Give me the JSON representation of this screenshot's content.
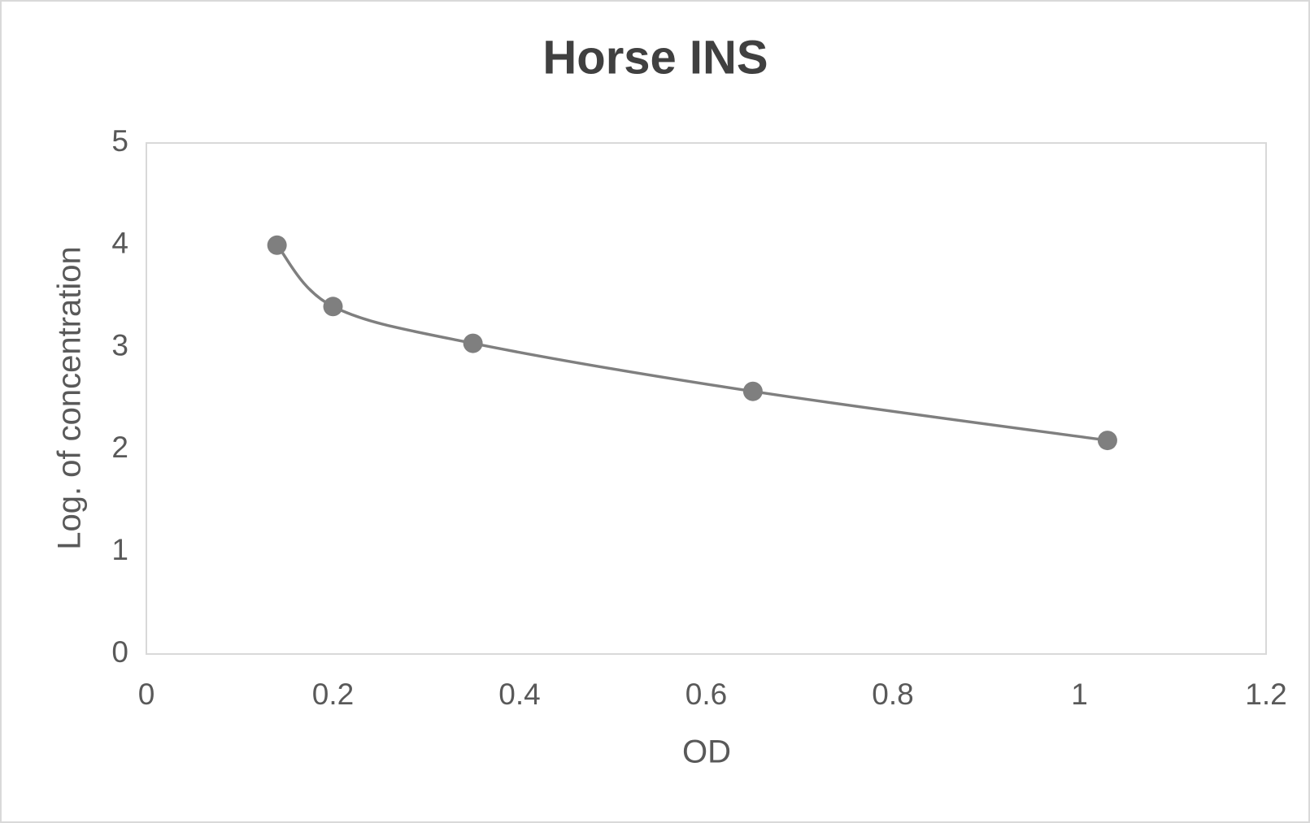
{
  "chart_data": {
    "type": "scatter",
    "title": "Horse INS",
    "x_label": "OD",
    "y_label": "Log. of concentration",
    "series": [
      {
        "x": [
          0.14,
          0.2,
          0.35,
          0.65,
          1.03
        ],
        "values": [
          4.0,
          3.4,
          3.04,
          2.57,
          2.09
        ],
        "color": "#7f7f7f"
      }
    ],
    "smooth": true,
    "xlim": [
      0,
      1.2
    ],
    "xticks": [
      0,
      0.2,
      0.4,
      0.6,
      0.8,
      1,
      1.2
    ],
    "ylim": [
      0,
      5
    ],
    "yticks": [
      0,
      1,
      2,
      3,
      4,
      5
    ],
    "grid": false
  }
}
